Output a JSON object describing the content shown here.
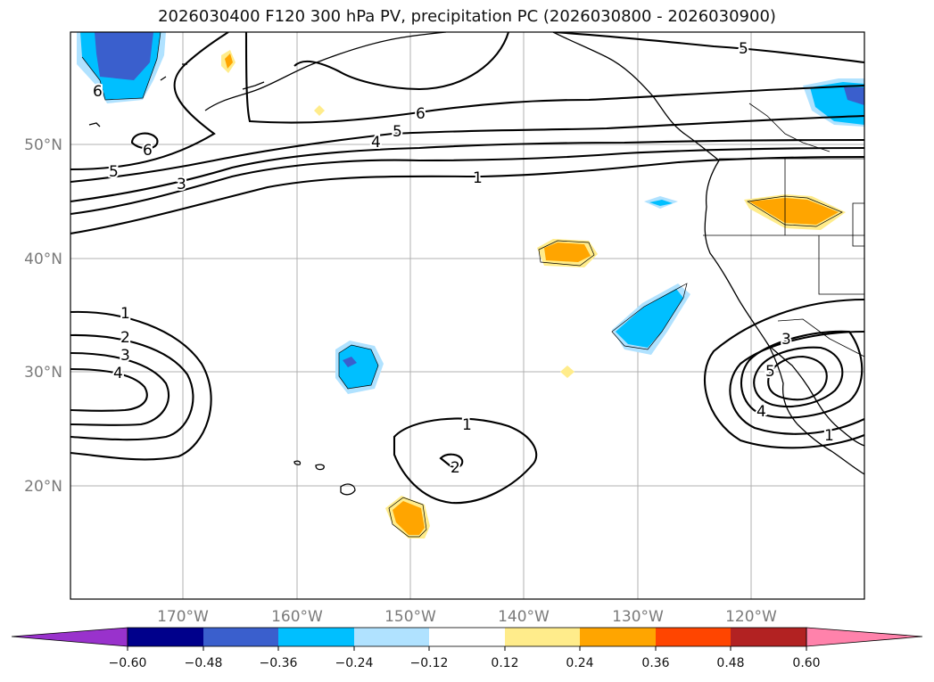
{
  "title": "2026030400 F120 300 hPa PV, precipitation PC (2026030800 - 2026030900)",
  "map": {
    "lat_labels": [
      "50°N",
      "40°N",
      "30°N",
      "20°N"
    ],
    "lon_labels": [
      "170°W",
      "160°W",
      "150°W",
      "140°W",
      "130°W",
      "120°W"
    ]
  },
  "contour_labels": [
    "6",
    "5",
    "6",
    "5",
    "4",
    "3",
    "1",
    "6",
    "5",
    "1",
    "2",
    "3",
    "4",
    "1",
    "2",
    "3",
    "5",
    "4",
    "1"
  ],
  "colorbar": {
    "tick_labels": [
      "−0.60",
      "−0.48",
      "−0.36",
      "−0.24",
      "−0.12",
      "0.12",
      "0.24",
      "0.36",
      "0.48",
      "0.60"
    ],
    "colors": [
      "#9932cc",
      "#00008b",
      "#3a5fcd",
      "#00bfff",
      "#b0e2ff",
      "#ffffff",
      "#ffec8b",
      "#ffa500",
      "#ff4500",
      "#b22222",
      "#ff82ab"
    ]
  }
}
